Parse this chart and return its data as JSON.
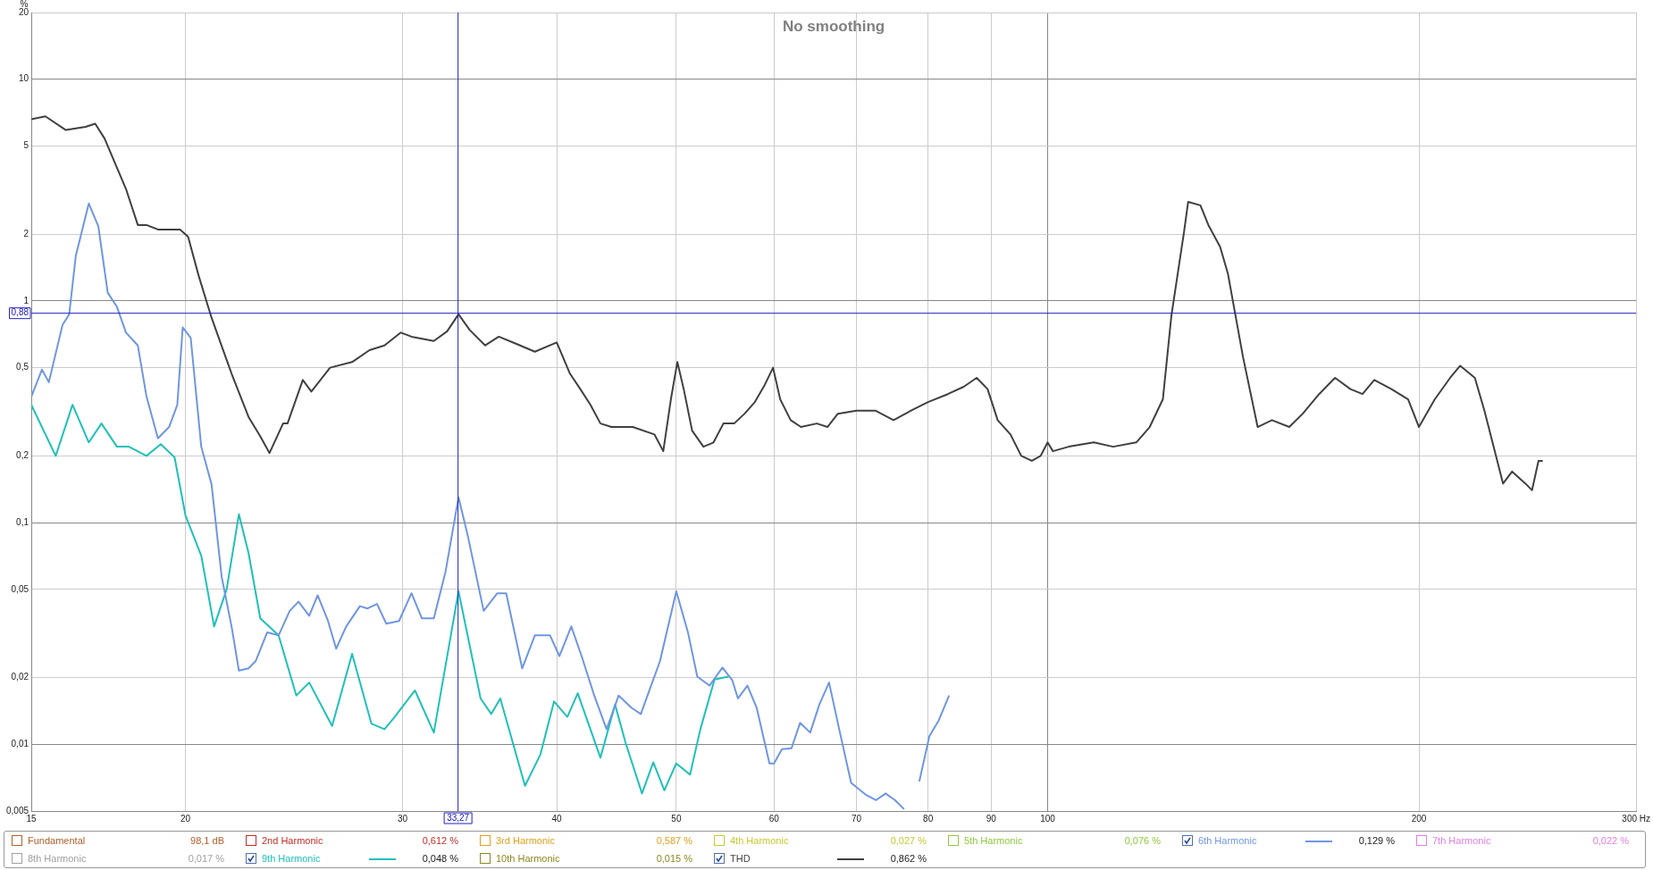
{
  "chart_data": {
    "type": "line",
    "title": "No smoothing",
    "ylabel": "%",
    "log": "xy",
    "grid": true,
    "legend": "bottom",
    "marker": "none",
    "line_style": "solid",
    "xlim": [
      15,
      300
    ],
    "xticks": [
      15,
      20,
      30,
      40,
      50,
      60,
      70,
      80,
      90,
      100,
      200,
      {
        "value": 300,
        "label": "300 Hz"
      }
    ],
    "ylim": [
      0.005,
      20
    ],
    "yticks": [
      {
        "value": 0.005,
        "label": "0,005"
      },
      {
        "value": 0.01,
        "label": "0,01"
      },
      {
        "value": 0.02,
        "label": "0,02"
      },
      {
        "value": 0.05,
        "label": "0,05"
      },
      {
        "value": 0.1,
        "label": "0,1"
      },
      {
        "value": 0.2,
        "label": "0,2"
      },
      {
        "value": 0.5,
        "label": "0,5"
      },
      1,
      2,
      5,
      10,
      20
    ],
    "ref_lines": [
      {
        "axis": "x",
        "value": 33.27,
        "label": "33,27",
        "color": "#2020c0"
      },
      {
        "axis": "y",
        "value": 0.88,
        "label": "0,88",
        "color": "#2020c0"
      }
    ],
    "series": [
      {
        "name": "Fundamental",
        "color": "#b0602c"
      },
      {
        "name": "2nd Harmonic",
        "color": "#c0302a"
      },
      {
        "name": "3rd Harmonic",
        "color": "#e0a020"
      },
      {
        "name": "4th Harmonic",
        "color": "#c8c830"
      },
      {
        "name": "5th Harmonic",
        "color": "#90c840"
      },
      {
        "name": "6th Harmonic",
        "color": "#6f96e0",
        "x": [
          15.0,
          15.3,
          15.5,
          15.9,
          16.1,
          16.3,
          16.7,
          17.0,
          17.3,
          17.6,
          17.9,
          18.3,
          18.6,
          19.0,
          19.4,
          19.7,
          19.9,
          20.2,
          20.6,
          21.0,
          21.4,
          21.8,
          22.1,
          22.5,
          22.8,
          23.3,
          23.8,
          24.3,
          24.7,
          25.2,
          25.6,
          26.1,
          26.5,
          27.0,
          27.7,
          28.1,
          28.6,
          29.1,
          29.8,
          30.5,
          31.1,
          31.8,
          32.5,
          33.3,
          33.9,
          34.9,
          35.8,
          36.4,
          37.5,
          38.4,
          39.5,
          40.2,
          41.1,
          41.9,
          42.9,
          43.9,
          44.9,
          46.0,
          46.8,
          47.6,
          48.5,
          50.0,
          51.1,
          52.0,
          53.2,
          54.5,
          55.5,
          56.1,
          57.1,
          58.1,
          59.5,
          60.0,
          60.9,
          62.0,
          63.0,
          64.2,
          65.3,
          66.5,
          67.7,
          69.3,
          71.3,
          72.6,
          73.9,
          75.2,
          76.5,
          77.6,
          78.7,
          80.2,
          81.6,
          83.2
        ],
        "values": [
          0.37,
          0.49,
          0.43,
          0.78,
          0.87,
          1.6,
          2.75,
          2.17,
          1.09,
          0.94,
          0.72,
          0.63,
          0.37,
          0.24,
          0.27,
          0.34,
          0.76,
          0.68,
          0.22,
          0.149,
          0.057,
          0.034,
          0.0215,
          0.022,
          0.0237,
          0.032,
          0.031,
          0.04,
          0.044,
          0.038,
          0.047,
          0.036,
          0.027,
          0.034,
          0.042,
          0.041,
          0.043,
          0.035,
          0.036,
          0.048,
          0.037,
          0.037,
          0.06,
          0.13,
          0.086,
          0.04,
          0.048,
          0.048,
          0.022,
          0.031,
          0.031,
          0.025,
          0.034,
          0.025,
          0.0166,
          0.0117,
          0.0166,
          0.0146,
          0.0137,
          0.0178,
          0.0237,
          0.049,
          0.032,
          0.0202,
          0.0184,
          0.0222,
          0.0195,
          0.0161,
          0.0184,
          0.0146,
          0.0082,
          0.0082,
          0.0095,
          0.0096,
          0.0125,
          0.0113,
          0.0151,
          0.019,
          0.012,
          0.0067,
          0.0059,
          0.0056,
          0.006,
          0.0056,
          0.0051,
          null,
          0.0068,
          0.0109,
          0.0128,
          0.0166
        ]
      },
      {
        "name": "7th Harmonic",
        "color": "#e080e0"
      },
      {
        "name": "8th Harmonic",
        "color": "#a0a0a0"
      },
      {
        "name": "9th Harmonic",
        "color": "#20c0b8",
        "x": [
          15.0,
          15.7,
          16.2,
          16.7,
          17.1,
          17.6,
          18.0,
          18.6,
          19.1,
          19.6,
          20.0,
          20.6,
          21.1,
          21.6,
          22.1,
          22.5,
          23.0,
          23.8,
          24.6,
          25.2,
          26.3,
          27.3,
          28.3,
          29.0,
          29.5,
          30.7,
          31.8,
          33.3,
          34.7,
          35.4,
          36.0,
          37.7,
          38.8,
          39.8,
          40.8,
          41.6,
          43.4,
          44.6,
          45.5,
          46.9,
          47.9,
          48.9,
          50.0,
          51.3,
          52.3,
          53.7,
          55.1
        ],
        "values": [
          0.34,
          0.2,
          0.34,
          0.23,
          0.28,
          0.22,
          0.22,
          0.2,
          0.226,
          0.197,
          0.108,
          0.071,
          0.034,
          0.05,
          0.109,
          0.073,
          0.037,
          0.031,
          0.0166,
          0.019,
          0.0121,
          0.0256,
          0.0124,
          0.0117,
          0.0131,
          0.0175,
          0.0113,
          0.049,
          0.0161,
          0.0137,
          0.0161,
          0.0065,
          0.009,
          0.0156,
          0.0133,
          0.017,
          0.0087,
          0.0151,
          0.0101,
          0.006,
          0.0083,
          0.0062,
          0.0082,
          0.0073,
          0.0117,
          0.0196,
          0.0202
        ]
      },
      {
        "name": "10th Harmonic",
        "color": "#8a8a20"
      },
      {
        "name": "THD",
        "color": "#404040",
        "x": [
          15.0,
          15.4,
          16.0,
          16.6,
          16.9,
          17.2,
          17.5,
          17.9,
          18.3,
          18.6,
          19.0,
          19.5,
          19.8,
          20.1,
          20.5,
          21.0,
          21.8,
          22.5,
          23.0,
          23.4,
          24.0,
          24.2,
          24.9,
          25.3,
          26.2,
          27.3,
          28.2,
          29.0,
          29.9,
          30.5,
          31.8,
          32.6,
          33.3,
          34.0,
          35.0,
          35.9,
          37.1,
          38.4,
          40.0,
          41.0,
          41.8,
          42.6,
          43.4,
          44.3,
          46.1,
          48.0,
          48.8,
          49.5,
          50.1,
          50.7,
          51.5,
          52.6,
          53.6,
          54.6,
          55.7,
          56.8,
          57.9,
          59.0,
          59.9,
          60.7,
          61.9,
          63.1,
          65.0,
          66.3,
          67.6,
          70.0,
          72.5,
          75.0,
          77.5,
          80.0,
          83.0,
          85.5,
          87.6,
          89.4,
          91.1,
          93.3,
          95.2,
          97.1,
          98.7,
          100,
          101,
          104,
          109,
          113,
          118,
          121,
          124,
          126,
          129,
          130,
          133,
          135,
          138,
          140,
          144,
          148,
          152,
          157,
          161,
          166,
          171,
          176,
          180,
          184,
          190,
          196,
          200,
          206,
          212,
          216,
          222,
          226,
          234,
          238,
          244,
          247,
          250,
          252
        ],
        "values": [
          6.6,
          6.8,
          5.9,
          6.1,
          6.3,
          5.4,
          4.3,
          3.2,
          2.2,
          2.2,
          2.1,
          2.1,
          2.1,
          1.95,
          1.3,
          0.84,
          0.47,
          0.3,
          0.245,
          0.206,
          0.28,
          0.28,
          0.44,
          0.39,
          0.5,
          0.53,
          0.6,
          0.63,
          0.72,
          0.69,
          0.66,
          0.73,
          0.87,
          0.74,
          0.63,
          0.69,
          0.64,
          0.59,
          0.65,
          0.47,
          0.4,
          0.34,
          0.28,
          0.27,
          0.27,
          0.25,
          0.21,
          0.36,
          0.53,
          0.4,
          0.26,
          0.22,
          0.23,
          0.28,
          0.28,
          0.31,
          0.35,
          0.42,
          0.5,
          0.36,
          0.29,
          0.27,
          0.28,
          0.27,
          0.31,
          0.32,
          0.32,
          0.29,
          0.32,
          0.35,
          0.38,
          0.41,
          0.45,
          0.4,
          0.29,
          0.25,
          0.2,
          0.19,
          0.2,
          0.23,
          0.21,
          0.22,
          0.23,
          0.22,
          0.23,
          0.27,
          0.36,
          0.86,
          2.05,
          2.8,
          2.7,
          2.2,
          1.75,
          1.33,
          0.56,
          0.27,
          0.29,
          0.27,
          0.31,
          0.38,
          0.45,
          0.4,
          0.38,
          0.44,
          0.4,
          0.36,
          0.27,
          0.36,
          0.45,
          0.51,
          0.45,
          0.32,
          0.15,
          0.17,
          0.15,
          0.14,
          0.19,
          0.19
        ]
      }
    ],
    "annotations": [
      "98,1 dB",
      "0,612 %",
      "0,587 %",
      "0,027 %",
      "0,076 %",
      "0,129 %",
      "0,022 %",
      "0,017 %",
      "0,048 %",
      "0,015 %",
      "0,862 %"
    ]
  }
}
